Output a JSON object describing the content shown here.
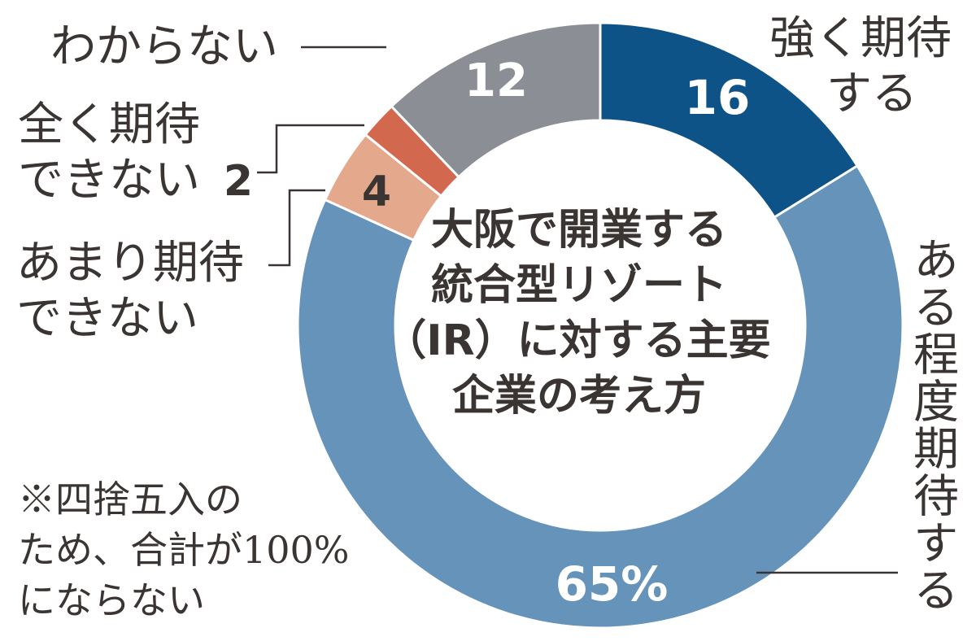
{
  "chart_data": {
    "type": "pie",
    "title_lines": [
      "大阪で開業する",
      "統合型リゾート",
      "（IR）に対する主要",
      "企業の考え方"
    ],
    "slices": [
      {
        "key": "strong",
        "label_lines": [
          "強く期待",
          "する"
        ],
        "value": 16,
        "value_label": "16",
        "color": "#0e5388"
      },
      {
        "key": "some",
        "label_lines": [
          "ある程度期待する"
        ],
        "value": 65,
        "value_label": "65%",
        "color": "#6693ba"
      },
      {
        "key": "little",
        "label_lines": [
          "あまり期待",
          "できない"
        ],
        "value": 4,
        "value_label": "4",
        "color": "#e4a98d"
      },
      {
        "key": "none",
        "label_lines": [
          "全く期待",
          "できない"
        ],
        "value": 2,
        "value_label": "2",
        "color": "#d2694f"
      },
      {
        "key": "unknown",
        "label_lines": [
          "わからない"
        ],
        "value": 12,
        "value_label": "12",
        "color": "#8b8f95"
      }
    ],
    "note_lines": [
      "※四捨五入の",
      "ため、合計が100%",
      "にならない"
    ]
  }
}
